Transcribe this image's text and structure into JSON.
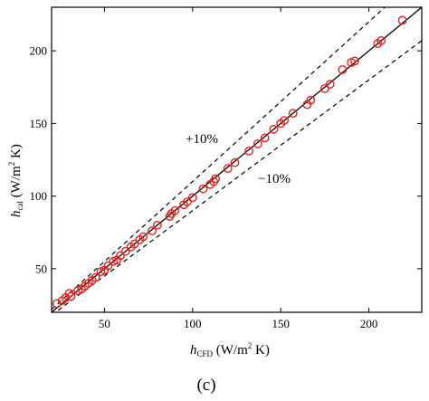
{
  "chart_data": {
    "type": "scatter",
    "xlabel": {
      "main": "h",
      "sub": "CFD",
      "unit_pre": " (W/m",
      "unit_sup": "2",
      "unit_post": " K)"
    },
    "ylabel": {
      "main": "h",
      "sub": "cal",
      "unit_pre": " (W/m",
      "unit_sup": "2",
      "unit_post": " K)"
    },
    "xlim": [
      20,
      230
    ],
    "ylim": [
      20,
      230
    ],
    "xticks": [
      50,
      100,
      150,
      200
    ],
    "yticks": [
      50,
      100,
      150,
      200
    ],
    "grid": false,
    "lines": [
      {
        "label": "",
        "style": "solid",
        "factor": 1.0
      },
      {
        "label": "+10%",
        "style": "dashed",
        "factor": 1.1
      },
      {
        "label": "−10%",
        "style": "dashed",
        "factor": 0.9
      }
    ],
    "marker_color": "#e3221c",
    "marker": "open-circle",
    "panel_label": "(c)",
    "points": [
      [
        23,
        26
      ],
      [
        26,
        28
      ],
      [
        28,
        30
      ],
      [
        30,
        33
      ],
      [
        31,
        31
      ],
      [
        35,
        35
      ],
      [
        37,
        36
      ],
      [
        39,
        38
      ],
      [
        41,
        40
      ],
      [
        43,
        42
      ],
      [
        45,
        44
      ],
      [
        48,
        48
      ],
      [
        50,
        49
      ],
      [
        52,
        52
      ],
      [
        55,
        55
      ],
      [
        57,
        56
      ],
      [
        59,
        59
      ],
      [
        62,
        62
      ],
      [
        65,
        65
      ],
      [
        67,
        67
      ],
      [
        70,
        70
      ],
      [
        72,
        72
      ],
      [
        77,
        76
      ],
      [
        80,
        80
      ],
      [
        87,
        86
      ],
      [
        88,
        88
      ],
      [
        90,
        90
      ],
      [
        95,
        94
      ],
      [
        97,
        96
      ],
      [
        100,
        99
      ],
      [
        106,
        105
      ],
      [
        110,
        108
      ],
      [
        112,
        110
      ],
      [
        113,
        112
      ],
      [
        120,
        119
      ],
      [
        124,
        123
      ],
      [
        132,
        131
      ],
      [
        137,
        136
      ],
      [
        141,
        140
      ],
      [
        146,
        146
      ],
      [
        150,
        150
      ],
      [
        152,
        152
      ],
      [
        157,
        157
      ],
      [
        165,
        163
      ],
      [
        167,
        166
      ],
      [
        175,
        174
      ],
      [
        178,
        177
      ],
      [
        185,
        187
      ],
      [
        190,
        192
      ],
      [
        192,
        193
      ],
      [
        205,
        205
      ],
      [
        207,
        207
      ],
      [
        219,
        221
      ]
    ]
  }
}
